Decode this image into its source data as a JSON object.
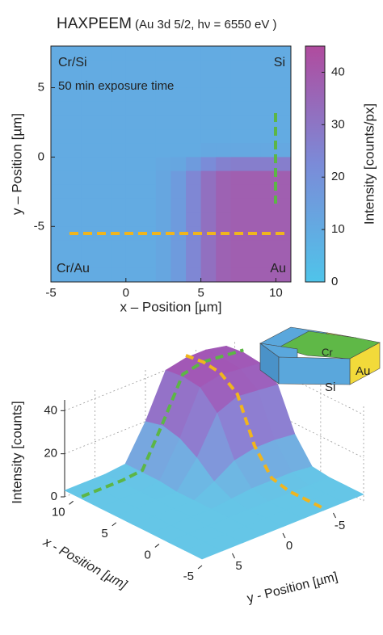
{
  "chart_data": [
    {
      "type": "heatmap",
      "title": "HAXPEEM",
      "subtitle": "(Au 3d 5/2, hν = 6550 eV )",
      "xlabel": "x – Position [µm]",
      "ylabel": "y – Position [µm]",
      "clabel": "Intensity [counts/px]",
      "annotations": [
        "Cr/Si",
        "Si",
        "50 min exposure time",
        "Cr/Au",
        "Au"
      ],
      "x": [
        -4.5,
        -3.5,
        -2.5,
        -1.5,
        -0.5,
        0.5,
        1.5,
        2.5,
        3.5,
        4.5,
        5.5,
        6.5,
        7.5,
        8.5,
        9.5,
        10.5
      ],
      "y": [
        7.5,
        6.5,
        5.5,
        4.5,
        3.5,
        2.5,
        1.5,
        0.5,
        -0.5,
        -1.5,
        -2.5,
        -3.5,
        -4.5,
        -5.5,
        -6.5,
        -7.5,
        -8.5
      ],
      "z": [
        [
          10,
          10,
          10,
          10,
          10,
          10,
          10,
          10,
          10,
          10,
          10,
          10,
          10,
          10,
          10,
          10
        ],
        [
          10,
          10,
          10,
          10,
          10,
          10,
          10,
          10,
          10,
          10,
          10,
          10,
          10,
          10,
          10,
          10
        ],
        [
          10,
          10,
          10,
          10,
          10,
          10,
          10,
          10,
          10,
          10,
          10,
          10,
          10,
          10,
          10,
          10
        ],
        [
          10,
          10,
          10,
          10,
          10,
          10,
          10,
          10,
          10,
          10,
          10,
          10,
          10,
          10,
          10,
          10
        ],
        [
          10,
          10,
          10,
          10,
          10,
          10,
          10,
          10,
          10,
          10,
          10,
          10,
          10,
          10,
          10,
          10
        ],
        [
          10,
          10,
          10,
          10,
          10,
          10,
          10,
          10,
          10,
          10,
          10,
          10,
          10,
          10,
          10,
          10
        ],
        [
          10,
          10,
          10,
          10,
          10,
          10,
          10,
          10,
          10,
          10,
          10,
          10,
          10,
          10,
          10,
          10
        ],
        [
          10,
          10,
          10,
          10,
          10,
          10,
          10,
          10,
          10,
          10,
          11,
          11,
          11,
          11,
          11,
          11
        ],
        [
          10,
          10,
          10,
          10,
          10,
          10,
          10,
          11,
          12,
          16,
          22,
          26,
          27,
          27,
          27,
          27
        ],
        [
          10,
          10,
          10,
          10,
          10,
          10,
          10,
          12,
          16,
          24,
          32,
          37,
          38,
          38,
          38,
          38
        ],
        [
          10,
          10,
          10,
          10,
          10,
          10,
          10,
          12,
          16,
          24,
          32,
          37,
          38,
          38,
          38,
          38
        ],
        [
          10,
          10,
          10,
          10,
          10,
          10,
          10,
          12,
          16,
          24,
          32,
          37,
          38,
          38,
          38,
          38
        ],
        [
          10,
          10,
          10,
          10,
          10,
          10,
          10,
          12,
          16,
          24,
          32,
          37,
          38,
          38,
          38,
          38
        ],
        [
          10,
          10,
          10,
          10,
          10,
          10,
          10,
          12,
          16,
          24,
          32,
          37,
          38,
          38,
          38,
          38
        ],
        [
          10,
          10,
          10,
          10,
          10,
          10,
          10,
          12,
          16,
          24,
          32,
          37,
          38,
          38,
          38,
          38
        ],
        [
          10,
          10,
          10,
          10,
          10,
          10,
          10,
          12,
          16,
          24,
          32,
          37,
          38,
          38,
          38,
          38
        ],
        [
          10,
          10,
          10,
          10,
          10,
          10,
          10,
          12,
          16,
          24,
          32,
          37,
          38,
          38,
          38,
          38
        ]
      ],
      "xlim": [
        -5,
        11
      ],
      "ylim": [
        -9,
        8
      ],
      "xticks": [
        -5,
        0,
        5,
        10
      ],
      "yticks": [
        -5,
        0,
        5
      ],
      "clim": [
        0,
        45
      ],
      "cticks": [
        0,
        10,
        20,
        30,
        40
      ],
      "colormap": [
        "#4fc4ea",
        "#7b8bd8",
        "#b04b9e"
      ]
    },
    {
      "type": "surface3d",
      "zlabel": "Intensity [counts]",
      "xlabel": "x - Position [µm]",
      "ylabel": "y - Position [µm]",
      "inset_labels": [
        "Cr",
        "Au",
        "Si"
      ],
      "x": [
        11,
        9,
        7,
        5,
        3,
        1,
        -1,
        -3,
        -5
      ],
      "y": [
        8,
        6,
        4,
        2,
        0,
        -2,
        -4,
        -6,
        -8
      ],
      "z": [
        [
          3,
          3,
          3,
          4,
          20,
          40,
          42,
          42,
          40
        ],
        [
          3,
          3,
          3,
          4,
          22,
          41,
          43,
          42,
          41
        ],
        [
          3,
          3,
          3,
          4,
          20,
          40,
          42,
          41,
          40
        ],
        [
          3,
          3,
          3,
          3,
          15,
          32,
          36,
          35,
          34
        ],
        [
          3,
          3,
          3,
          3,
          8,
          14,
          16,
          16,
          15
        ],
        [
          3,
          3,
          3,
          3,
          4,
          5,
          5,
          5,
          4
        ],
        [
          3,
          3,
          3,
          3,
          3,
          3,
          3,
          3,
          3
        ],
        [
          3,
          3,
          3,
          3,
          3,
          3,
          3,
          3,
          3
        ],
        [
          3,
          3,
          3,
          3,
          3,
          3,
          3,
          3,
          3
        ]
      ],
      "xlim": [
        -5,
        11
      ],
      "ylim": [
        -8,
        8
      ],
      "zlim": [
        0,
        45
      ],
      "xticks": [
        10,
        5,
        0,
        -5
      ],
      "yticks": [
        5,
        0,
        -5
      ],
      "zticks": [
        0,
        20,
        40
      ],
      "colormap": [
        "#5fd0ea",
        "#8a86d6",
        "#a64fb0"
      ]
    }
  ]
}
